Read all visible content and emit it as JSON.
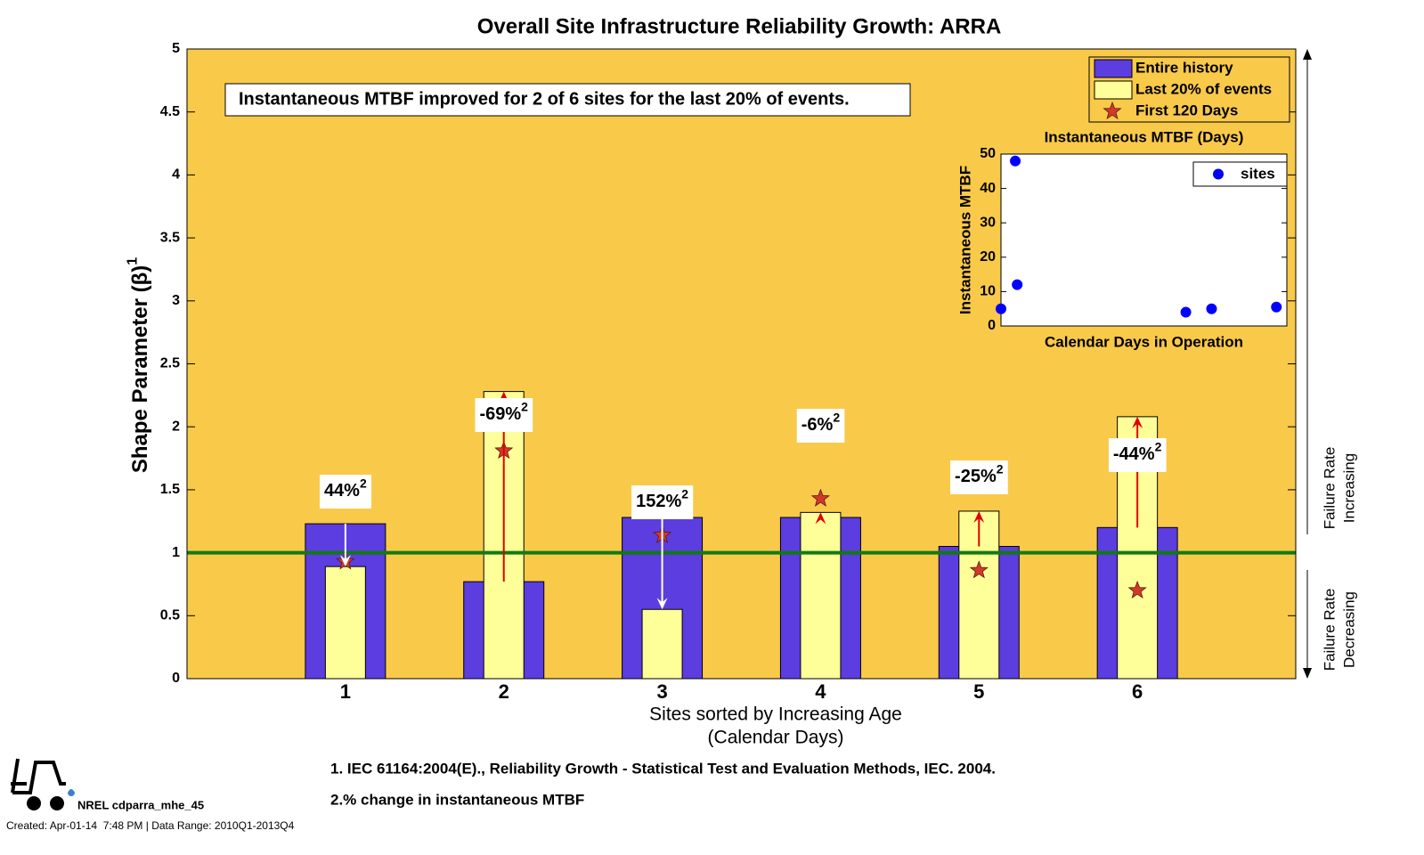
{
  "chart_data": [
    {
      "type": "bar",
      "title": "Overall Site Infrastructure Reliability Growth: ARRA",
      "annotation": "Instantaneous MTBF improved for 2 of 6 sites for the last 20% of events.",
      "y_label": "Shape Parameter (β)",
      "y_label_sup": "1",
      "x_label": [
        "Sites sorted by Increasing Age",
        "(Calendar Days)"
      ],
      "categories": [
        "1",
        "2",
        "3",
        "4",
        "5",
        "6"
      ],
      "series": [
        {
          "name": "Entire history",
          "color": "#5b3de0",
          "values": [
            1.23,
            0.77,
            1.28,
            1.28,
            1.05,
            1.2
          ]
        },
        {
          "name": "Last 20% of events",
          "color": "#ffff99",
          "values": [
            0.89,
            2.28,
            0.55,
            1.32,
            1.33,
            2.08
          ]
        },
        {
          "name": "First 120 Days",
          "color": "#d2392b",
          "marker": "star",
          "values": [
            0.93,
            1.81,
            1.14,
            1.43,
            0.86,
            0.7
          ]
        }
      ],
      "change_labels": {
        "values": [
          44,
          -69,
          152,
          -6,
          -25,
          -44
        ],
        "value_labels": [
          "44%",
          "-69%",
          "152%",
          "-6%",
          "-25%",
          "-44%"
        ],
        "marker": "2"
      },
      "arrow_colors": {
        "up": "#e00000",
        "down": "#ffffff"
      },
      "reference_line": {
        "value": 1,
        "color": "#117a11"
      },
      "side_labels": [
        [
          "Failure Rate",
          "Increasing"
        ],
        [
          "Failure Rate",
          "Decreasing"
        ]
      ],
      "ylim": [
        0,
        5
      ],
      "yticks": [
        0,
        0.5,
        1,
        1.5,
        2,
        2.5,
        3,
        3.5,
        4,
        4.5,
        5
      ],
      "background": "#f9c94a",
      "legend": "upper right"
    },
    {
      "type": "scatter",
      "title": "Instantaneous MTBF (Days)",
      "x_label": "Calendar Days in Operation",
      "y_label": "Instantaneous MTBF",
      "series": [
        {
          "name": "sites",
          "color": "#0000ff",
          "x": [
            0,
            75,
            85,
            970,
            1105,
            1445
          ],
          "values": [
            5,
            48,
            12,
            4,
            5,
            5.5
          ]
        }
      ],
      "xlim": [
        0,
        1500
      ],
      "ylim": [
        0,
        50
      ],
      "yticks": [
        0,
        10,
        20,
        30,
        40,
        50
      ],
      "legend": "upper right"
    }
  ],
  "footnotes": [
    "1. IEC 61164:2004(E)., Reliability Growth - Statistical Test and Evaluation Methods, IEC. 2004.",
    "2.% change in instantaneous MTBF"
  ],
  "footer": {
    "author": "NREL cdparra_mhe_45",
    "created": "Created: Apr-01-14  7:48 PM | Data Range: 2010Q1-2013Q4"
  }
}
